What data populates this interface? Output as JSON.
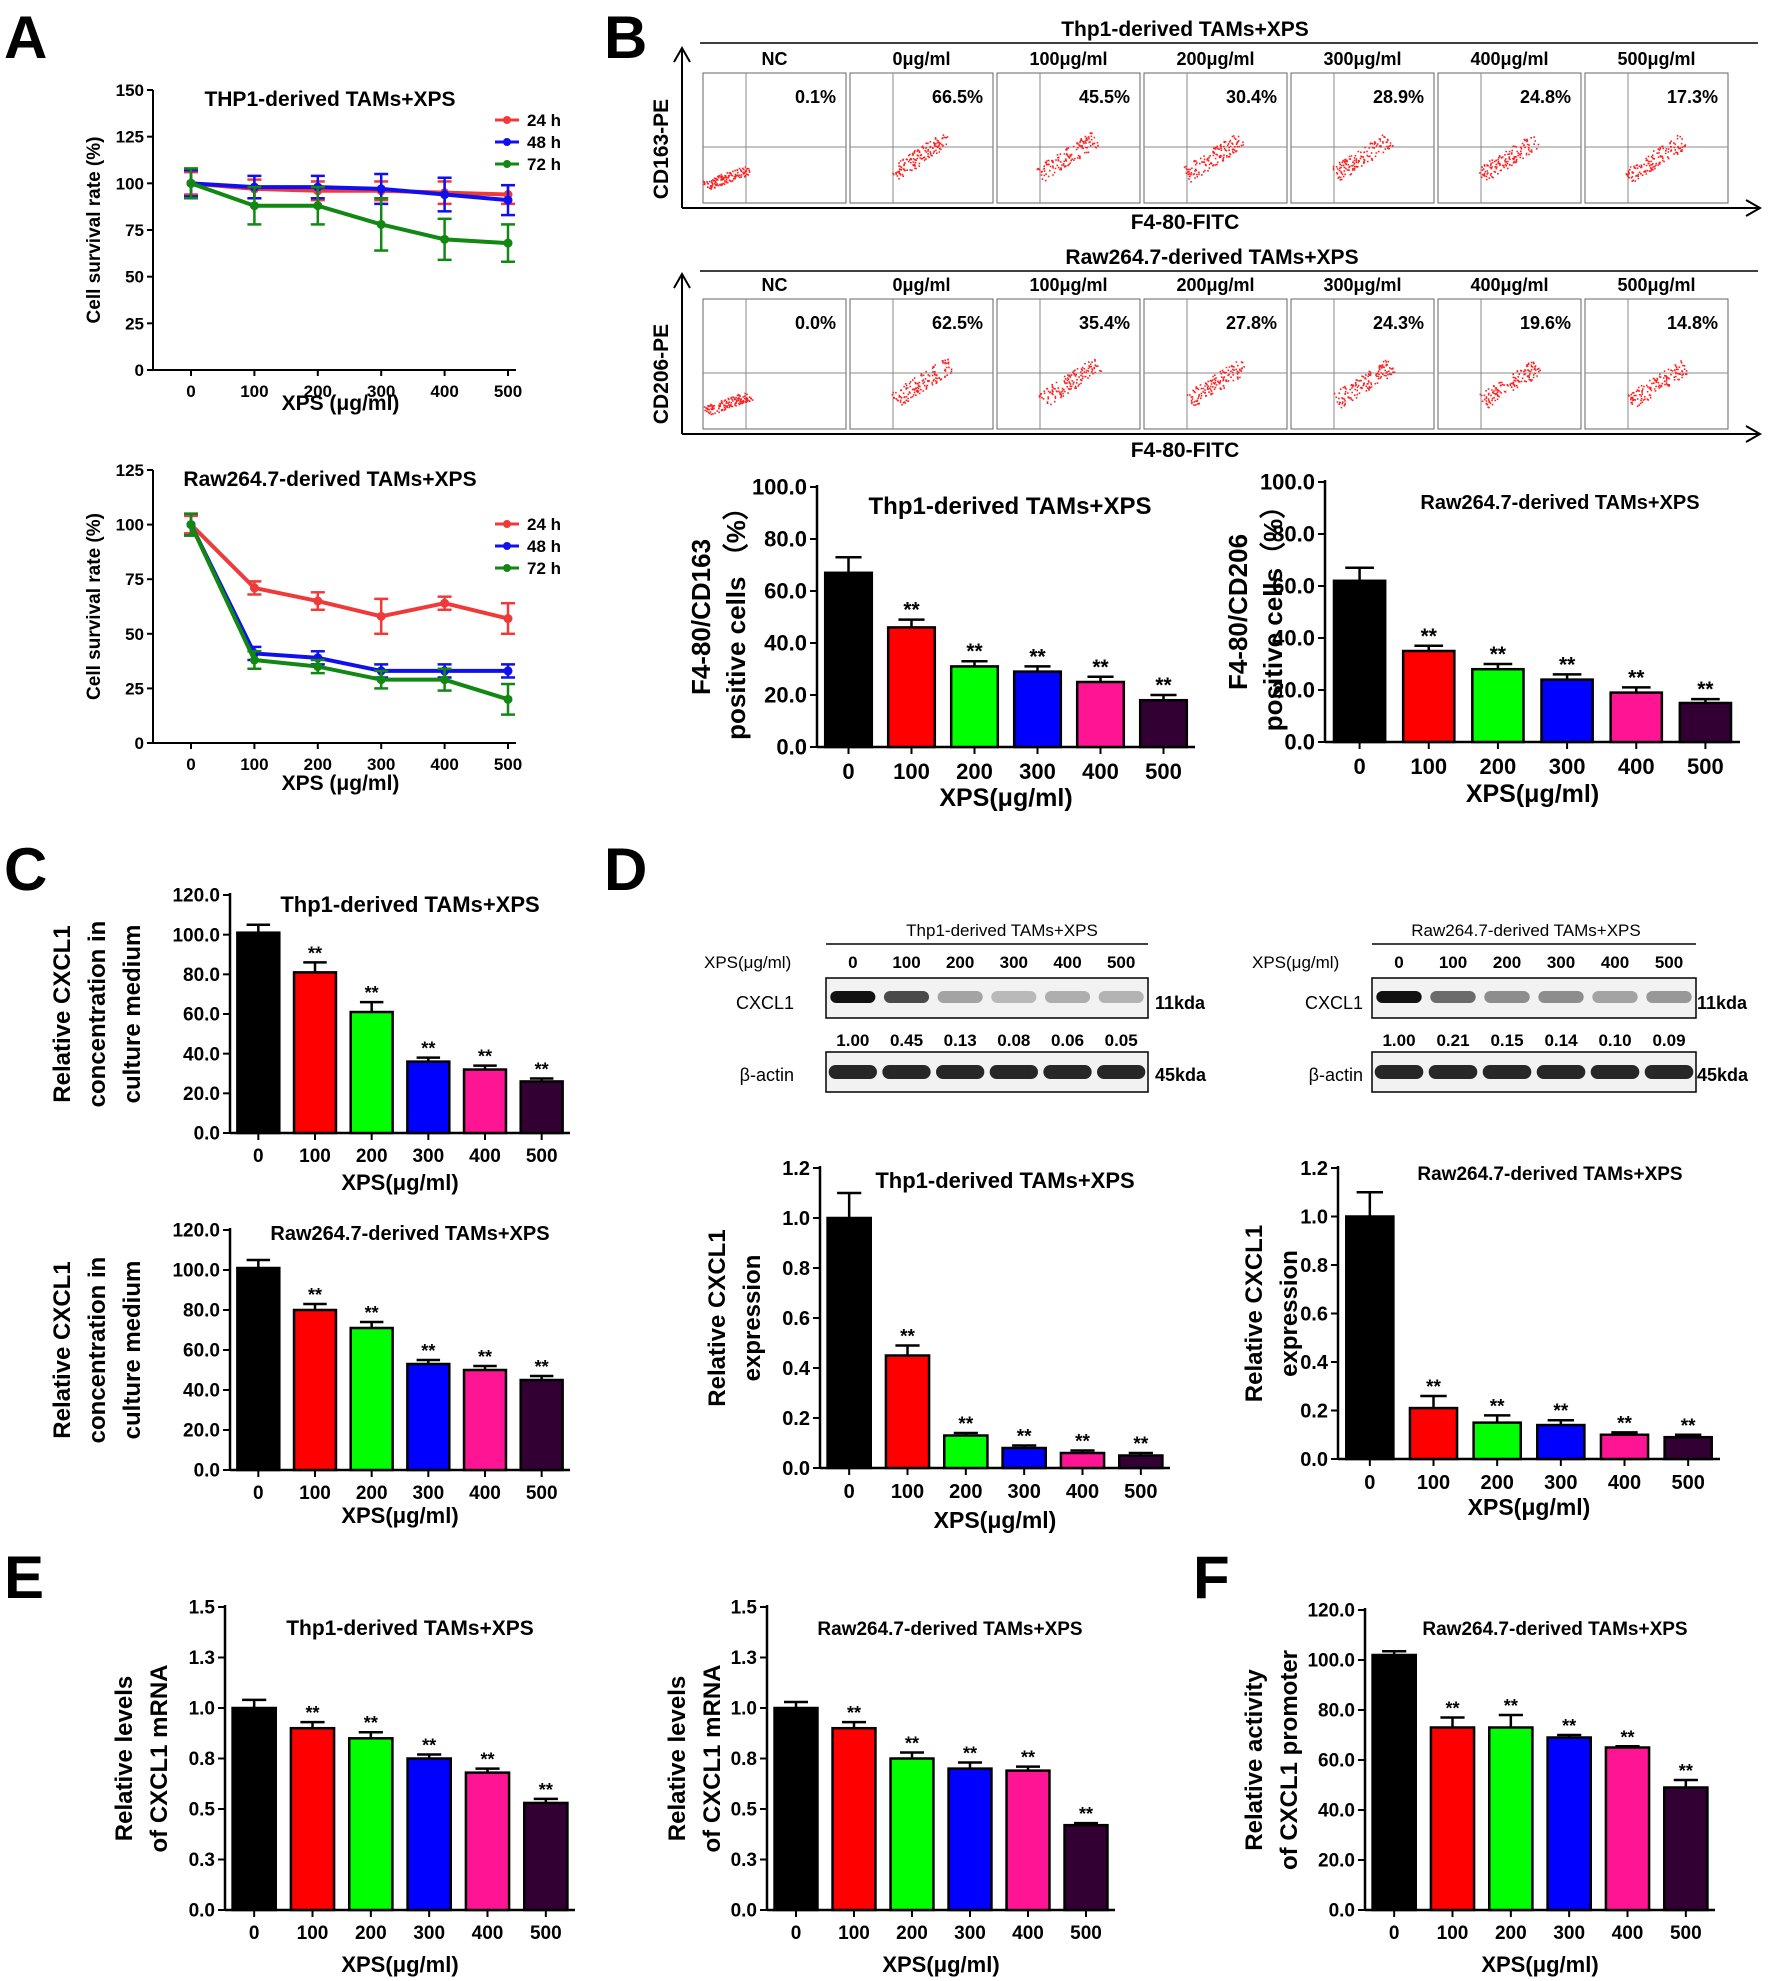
{
  "panels": {
    "A": {
      "letter": "A"
    },
    "B": {
      "letter": "B"
    },
    "C": {
      "letter": "C"
    },
    "D": {
      "letter": "D"
    },
    "E": {
      "letter": "E"
    },
    "F": {
      "letter": "F"
    }
  },
  "colors": {
    "bars": [
      "#000000",
      "#ff0000",
      "#00ff00",
      "#0000ff",
      "#ff1493",
      "#330033"
    ],
    "line24": "#f03a3a",
    "line48": "#1010ee",
    "line72": "#118811",
    "dots": "#ff2020"
  },
  "flow": {
    "thp": {
      "title": "Thp1-derived TAMs+XPS",
      "ylabel": "CD163-PE",
      "xlabel": "F4-80-FITC",
      "plots": [
        {
          "label": "NC",
          "pct": "0.1%"
        },
        {
          "label": "0μg/ml",
          "pct": "66.5%"
        },
        {
          "label": "100μg/ml",
          "pct": "45.5%"
        },
        {
          "label": "200μg/ml",
          "pct": "30.4%"
        },
        {
          "label": "300μg/ml",
          "pct": "28.9%"
        },
        {
          "label": "400μg/ml",
          "pct": "24.8%"
        },
        {
          "label": "500μg/ml",
          "pct": "17.3%"
        }
      ]
    },
    "raw": {
      "title": "Raw264.7-derived TAMs+XPS",
      "ylabel": "CD206-PE",
      "xlabel": "F4-80-FITC",
      "plots": [
        {
          "label": "NC",
          "pct": "0.0%"
        },
        {
          "label": "0μg/ml",
          "pct": "62.5%"
        },
        {
          "label": "100μg/ml",
          "pct": "35.4%"
        },
        {
          "label": "200μg/ml",
          "pct": "27.8%"
        },
        {
          "label": "300μg/ml",
          "pct": "24.3%"
        },
        {
          "label": "400μg/ml",
          "pct": "19.6%"
        },
        {
          "label": "500μg/ml",
          "pct": "14.8%"
        }
      ]
    }
  },
  "westerns": {
    "thp": {
      "title": "Thp1-derived TAMs+XPS",
      "xps_label": "XPS(μg/ml)",
      "doses": [
        "0",
        "100",
        "200",
        "300",
        "400",
        "500"
      ],
      "target": "CXCL1",
      "target_kda": "11kda",
      "ratios": [
        "1.00",
        "0.45",
        "0.13",
        "0.08",
        "0.06",
        "0.05"
      ],
      "loading": "β-actin",
      "loading_kda": "45kda"
    },
    "raw": {
      "title": "Raw264.7-derived TAMs+XPS",
      "xps_label": "XPS(μg/ml)",
      "doses": [
        "0",
        "100",
        "200",
        "300",
        "400",
        "500"
      ],
      "target": "CXCL1",
      "target_kda": "11kda",
      "ratios": [
        "1.00",
        "0.21",
        "0.15",
        "0.14",
        "0.10",
        "0.09"
      ],
      "loading": "β-actin",
      "loading_kda": "45kda"
    }
  },
  "chart_data": [
    {
      "id": "A1",
      "type": "line",
      "title": "THP1-derived TAMs+XPS",
      "xlabel": "XPS (μg/ml)",
      "ylabel": [
        "Cell survival rate (%)"
      ],
      "x": [
        0,
        100,
        200,
        300,
        400,
        500
      ],
      "ylim": [
        0,
        150
      ],
      "yticks": [
        "0",
        "25",
        "50",
        "75",
        "100",
        "125",
        "150"
      ],
      "series": [
        {
          "name": "24 h",
          "values": [
            100,
            97,
            96,
            96,
            95,
            94
          ],
          "err": [
            6,
            5,
            5,
            5,
            6,
            5
          ]
        },
        {
          "name": "48 h",
          "values": [
            100,
            98,
            98,
            97,
            94,
            91
          ],
          "err": [
            7,
            6,
            6,
            8,
            9,
            8
          ]
        },
        {
          "name": "72 h",
          "values": [
            100,
            88,
            88,
            78,
            70,
            68
          ],
          "err": [
            8,
            10,
            10,
            14,
            11,
            10
          ]
        }
      ]
    },
    {
      "id": "A2",
      "type": "line",
      "title": "Raw264.7-derived TAMs+XPS",
      "xlabel": "XPS (μg/ml)",
      "ylabel": [
        "Cell survival rate (%)"
      ],
      "x": [
        0,
        100,
        200,
        300,
        400,
        500
      ],
      "ylim": [
        0,
        125
      ],
      "yticks": [
        "0",
        "25",
        "50",
        "75",
        "100",
        "125"
      ],
      "series": [
        {
          "name": "24 h",
          "values": [
            100,
            71,
            65,
            58,
            64,
            57
          ],
          "err": [
            4,
            3,
            4,
            8,
            3,
            7
          ]
        },
        {
          "name": "48 h",
          "values": [
            100,
            41,
            39,
            33,
            33,
            33
          ],
          "err": [
            5,
            3,
            3,
            3,
            3,
            3
          ]
        },
        {
          "name": "72 h",
          "values": [
            100,
            38,
            35,
            29,
            29,
            20
          ],
          "err": [
            5,
            4,
            3,
            4,
            5,
            7
          ]
        }
      ]
    },
    {
      "id": "B1",
      "type": "bar",
      "title": "Thp1-derived TAMs+XPS",
      "xlabel": "XPS(μg/ml)",
      "ylabel": [
        "F4-80/CD163",
        "positive cells （%）"
      ],
      "categories": [
        "0",
        "100",
        "200",
        "300",
        "400",
        "500"
      ],
      "values": [
        67,
        46,
        31,
        29,
        25,
        18
      ],
      "err": [
        6,
        3,
        2,
        2,
        2,
        2
      ],
      "sig": [
        "",
        "**",
        "**",
        "**",
        "**",
        "**"
      ],
      "ylim": [
        0,
        100
      ],
      "yticks": [
        "0.0",
        "20.0",
        "40.0",
        "60.0",
        "80.0",
        "100.0"
      ]
    },
    {
      "id": "B2",
      "type": "bar",
      "title": "Raw264.7-derived TAMs+XPS",
      "xlabel": "XPS(μg/ml)",
      "ylabel": [
        "F4-80/CD206",
        "positive cells（%）"
      ],
      "categories": [
        "0",
        "100",
        "200",
        "300",
        "400",
        "500"
      ],
      "values": [
        62,
        35,
        28,
        24,
        19,
        15
      ],
      "err": [
        5,
        2,
        2,
        2,
        2,
        1.5
      ],
      "sig": [
        "",
        "**",
        "**",
        "**",
        "**",
        "**"
      ],
      "ylim": [
        0,
        100
      ],
      "yticks": [
        "0.0",
        "20.0",
        "40.0",
        "60.0",
        "80.0",
        "100.0"
      ]
    },
    {
      "id": "C1",
      "type": "bar",
      "title": "Thp1-derived TAMs+XPS",
      "xlabel": "XPS(μg/ml)",
      "ylabel": [
        "Relative CXCL1",
        "concentration in",
        "culture medium"
      ],
      "categories": [
        "0",
        "100",
        "200",
        "300",
        "400",
        "500"
      ],
      "values": [
        101,
        81,
        61,
        36,
        32,
        26
      ],
      "err": [
        4,
        5,
        5,
        2,
        2,
        1.5
      ],
      "sig": [
        "",
        "**",
        "**",
        "**",
        "**",
        "**"
      ],
      "ylim": [
        0,
        120
      ],
      "yticks": [
        "0.0",
        "20.0",
        "40.0",
        "60.0",
        "80.0",
        "100.0",
        "120.0"
      ]
    },
    {
      "id": "C2",
      "type": "bar",
      "title": "Raw264.7-derived TAMs+XPS",
      "xlabel": "XPS(μg/ml)",
      "ylabel": [
        "Relative CXCL1",
        "concentration in",
        "culture medium"
      ],
      "categories": [
        "0",
        "100",
        "200",
        "300",
        "400",
        "500"
      ],
      "values": [
        101,
        80,
        71,
        53,
        50,
        45
      ],
      "err": [
        4,
        3,
        3,
        2,
        2,
        2
      ],
      "sig": [
        "",
        "**",
        "**",
        "**",
        "**",
        "**"
      ],
      "ylim": [
        0,
        120
      ],
      "yticks": [
        "0.0",
        "20.0",
        "40.0",
        "60.0",
        "80.0",
        "100.0",
        "120.0"
      ]
    },
    {
      "id": "D1",
      "type": "bar",
      "title": "Thp1-derived TAMs+XPS",
      "xlabel": "XPS(μg/ml)",
      "ylabel": [
        "Relative CXCL1",
        "expression"
      ],
      "categories": [
        "0",
        "100",
        "200",
        "300",
        "400",
        "500"
      ],
      "values": [
        1.0,
        0.45,
        0.13,
        0.08,
        0.06,
        0.05
      ],
      "err": [
        0.1,
        0.04,
        0.01,
        0.01,
        0.01,
        0.01
      ],
      "sig": [
        "",
        "**",
        "**",
        "**",
        "**",
        "**"
      ],
      "ylim": [
        0,
        1.2
      ],
      "yticks": [
        "0.0",
        "0.2",
        "0.4",
        "0.6",
        "0.8",
        "1.0",
        "1.2"
      ]
    },
    {
      "id": "D2",
      "type": "bar",
      "title": "Raw264.7-derived TAMs+XPS",
      "xlabel": "XPS(μg/ml)",
      "ylabel": [
        "Relative CXCL1",
        "expression"
      ],
      "categories": [
        "0",
        "100",
        "200",
        "300",
        "400",
        "500"
      ],
      "values": [
        1.0,
        0.21,
        0.15,
        0.14,
        0.1,
        0.09
      ],
      "err": [
        0.1,
        0.05,
        0.03,
        0.02,
        0.01,
        0.01
      ],
      "sig": [
        "",
        "**",
        "**",
        "**",
        "**",
        "**"
      ],
      "ylim": [
        0,
        1.2
      ],
      "yticks": [
        "0.0",
        "0.2",
        "0.4",
        "0.6",
        "0.8",
        "1.0",
        "1.2"
      ]
    },
    {
      "id": "E1",
      "type": "bar",
      "title": "Thp1-derived TAMs+XPS",
      "xlabel": "XPS(μg/ml)",
      "ylabel": [
        "Relative levels",
        "of CXCL1 mRNA"
      ],
      "categories": [
        "0",
        "100",
        "200",
        "300",
        "400",
        "500"
      ],
      "values": [
        1.0,
        0.9,
        0.85,
        0.75,
        0.68,
        0.53
      ],
      "err": [
        0.04,
        0.03,
        0.03,
        0.02,
        0.02,
        0.02
      ],
      "sig": [
        "",
        "**",
        "**",
        "**",
        "**",
        "**"
      ],
      "ylim": [
        0,
        1.5
      ],
      "yticks": [
        "0.0",
        "0.3",
        "0.5",
        "0.8",
        "1.0",
        "1.3",
        "1.5"
      ]
    },
    {
      "id": "E2",
      "type": "bar",
      "title": "Raw264.7-derived TAMs+XPS",
      "xlabel": "XPS(μg/ml)",
      "ylabel": [
        "Relative levels",
        "of CXCL1 mRNA"
      ],
      "categories": [
        "0",
        "100",
        "200",
        "300",
        "400",
        "500"
      ],
      "values": [
        1.0,
        0.9,
        0.75,
        0.7,
        0.69,
        0.42
      ],
      "err": [
        0.03,
        0.03,
        0.03,
        0.03,
        0.02,
        0.01
      ],
      "sig": [
        "",
        "**",
        "**",
        "**",
        "**",
        "**"
      ],
      "ylim": [
        0,
        1.5
      ],
      "yticks": [
        "0.0",
        "0.3",
        "0.5",
        "0.8",
        "1.0",
        "1.3",
        "1.5"
      ]
    },
    {
      "id": "F1",
      "type": "bar",
      "title": "Raw264.7-derived TAMs+XPS",
      "xlabel": "XPS(μg/ml)",
      "ylabel": [
        "Relative activity",
        "of CXCL1 promoter"
      ],
      "categories": [
        "0",
        "100",
        "200",
        "300",
        "400",
        "500"
      ],
      "values": [
        102,
        73,
        73,
        69,
        65,
        49
      ],
      "err": [
        1.5,
        4,
        5,
        1,
        0.5,
        3
      ],
      "sig": [
        "",
        "**",
        "**",
        "**",
        "**",
        "**"
      ],
      "ylim": [
        0,
        120
      ],
      "yticks": [
        "0.0",
        "20.0",
        "40.0",
        "60.0",
        "80.0",
        "100.0",
        "120.0"
      ]
    }
  ]
}
